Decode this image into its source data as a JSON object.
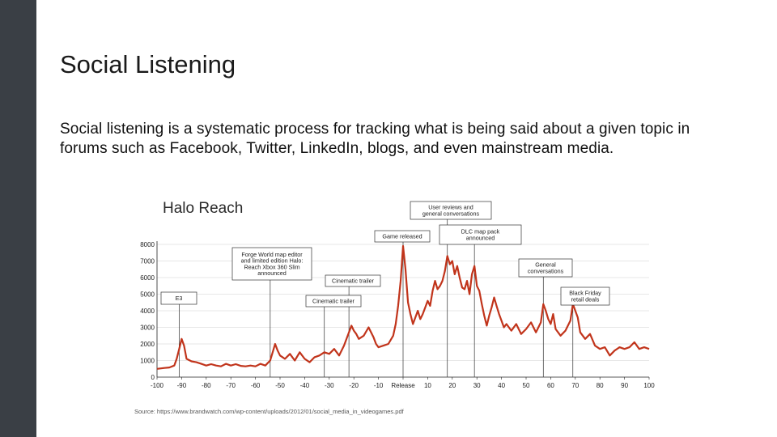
{
  "slide": {
    "title": "Social Listening",
    "body": "Social listening is a systematic process for tracking what is being said about a given topic in forums such as Facebook, Twitter, LinkedIn, blogs, and even mainstream media."
  },
  "chart_data": {
    "type": "line",
    "title": "Halo Reach",
    "xlabel": "",
    "ylabel": "",
    "xlim": [
      -100,
      100
    ],
    "ylim": [
      0,
      8000
    ],
    "grid": true,
    "x_ticks": [
      "-100",
      "-90",
      "-80",
      "-70",
      "-60",
      "-50",
      "-40",
      "-30",
      "-20",
      "-10",
      "Release",
      "10",
      "20",
      "30",
      "40",
      "50",
      "60",
      "70",
      "80",
      "90",
      "100"
    ],
    "y_ticks": [
      "0",
      "1000",
      "2000",
      "3000",
      "4000",
      "5000",
      "6000",
      "7000",
      "8000"
    ],
    "color": "#c1341b",
    "series": [
      {
        "values": [
          [
            -100,
            500
          ],
          [
            -97,
            550
          ],
          [
            -95,
            580
          ],
          [
            -93,
            700
          ],
          [
            -92,
            1100
          ],
          [
            -91,
            1700
          ],
          [
            -90,
            2300
          ],
          [
            -89,
            1900
          ],
          [
            -88,
            1100
          ],
          [
            -86,
            950
          ],
          [
            -84,
            900
          ],
          [
            -82,
            800
          ],
          [
            -80,
            700
          ],
          [
            -78,
            780
          ],
          [
            -76,
            700
          ],
          [
            -74,
            650
          ],
          [
            -72,
            800
          ],
          [
            -70,
            700
          ],
          [
            -68,
            780
          ],
          [
            -66,
            680
          ],
          [
            -64,
            650
          ],
          [
            -62,
            700
          ],
          [
            -60,
            650
          ],
          [
            -58,
            800
          ],
          [
            -56,
            700
          ],
          [
            -54,
            1000
          ],
          [
            -53,
            1500
          ],
          [
            -52,
            2000
          ],
          [
            -51,
            1600
          ],
          [
            -50,
            1300
          ],
          [
            -48,
            1100
          ],
          [
            -46,
            1400
          ],
          [
            -44,
            1000
          ],
          [
            -42,
            1500
          ],
          [
            -40,
            1100
          ],
          [
            -38,
            900
          ],
          [
            -36,
            1200
          ],
          [
            -34,
            1300
          ],
          [
            -32,
            1500
          ],
          [
            -30,
            1400
          ],
          [
            -28,
            1700
          ],
          [
            -26,
            1300
          ],
          [
            -24,
            1900
          ],
          [
            -22,
            2700
          ],
          [
            -21,
            3100
          ],
          [
            -20,
            2800
          ],
          [
            -19,
            2600
          ],
          [
            -18,
            2300
          ],
          [
            -16,
            2500
          ],
          [
            -14,
            3000
          ],
          [
            -12,
            2400
          ],
          [
            -11,
            2000
          ],
          [
            -10,
            1800
          ],
          [
            -8,
            1900
          ],
          [
            -6,
            2000
          ],
          [
            -4,
            2500
          ],
          [
            -3,
            3200
          ],
          [
            -2,
            4300
          ],
          [
            -1,
            5800
          ],
          [
            0,
            7900
          ],
          [
            1,
            6500
          ],
          [
            2,
            4500
          ],
          [
            3,
            3800
          ],
          [
            4,
            3200
          ],
          [
            5,
            3600
          ],
          [
            6,
            4000
          ],
          [
            7,
            3500
          ],
          [
            8,
            3800
          ],
          [
            9,
            4200
          ],
          [
            10,
            4600
          ],
          [
            11,
            4300
          ],
          [
            12,
            5200
          ],
          [
            13,
            5800
          ],
          [
            14,
            5300
          ],
          [
            15,
            5500
          ],
          [
            16,
            5800
          ],
          [
            17,
            6400
          ],
          [
            18,
            7300
          ],
          [
            19,
            6800
          ],
          [
            20,
            7000
          ],
          [
            21,
            6200
          ],
          [
            22,
            6700
          ],
          [
            23,
            6000
          ],
          [
            24,
            5400
          ],
          [
            25,
            5300
          ],
          [
            26,
            5800
          ],
          [
            27,
            5000
          ],
          [
            28,
            6200
          ],
          [
            29,
            6700
          ],
          [
            30,
            5500
          ],
          [
            31,
            5200
          ],
          [
            32,
            4400
          ],
          [
            33,
            3700
          ],
          [
            34,
            3100
          ],
          [
            35,
            3700
          ],
          [
            36,
            4200
          ],
          [
            37,
            4800
          ],
          [
            38,
            4300
          ],
          [
            39,
            3800
          ],
          [
            40,
            3400
          ],
          [
            41,
            3000
          ],
          [
            42,
            3200
          ],
          [
            44,
            2800
          ],
          [
            46,
            3200
          ],
          [
            48,
            2600
          ],
          [
            50,
            2900
          ],
          [
            52,
            3300
          ],
          [
            54,
            2700
          ],
          [
            56,
            3300
          ],
          [
            57,
            4400
          ],
          [
            58,
            4000
          ],
          [
            59,
            3500
          ],
          [
            60,
            3200
          ],
          [
            61,
            3800
          ],
          [
            62,
            2900
          ],
          [
            64,
            2500
          ],
          [
            66,
            2800
          ],
          [
            68,
            3400
          ],
          [
            69,
            4400
          ],
          [
            70,
            4000
          ],
          [
            71,
            3600
          ],
          [
            72,
            2700
          ],
          [
            74,
            2300
          ],
          [
            76,
            2600
          ],
          [
            78,
            1900
          ],
          [
            80,
            1700
          ],
          [
            82,
            1800
          ],
          [
            84,
            1300
          ],
          [
            86,
            1600
          ],
          [
            88,
            1800
          ],
          [
            90,
            1700
          ],
          [
            92,
            1800
          ],
          [
            94,
            2100
          ],
          [
            96,
            1700
          ],
          [
            98,
            1800
          ],
          [
            100,
            1700
          ]
        ]
      }
    ],
    "annotations": [
      {
        "x": -91,
        "y": 2300,
        "lines": [
          "E3"
        ]
      },
      {
        "x": -54,
        "y": 1500,
        "lines": [
          "Forge World map editor",
          "and limited edition Halo:",
          "Reach Xbox 360 Slim",
          "announced"
        ]
      },
      {
        "x": -22,
        "y": 3100,
        "lines": [
          "Cinematic trailer"
        ]
      },
      {
        "x": -32,
        "y": 1500,
        "lines": [
          "Cinematic trailer"
        ]
      },
      {
        "x": 0,
        "y": 7900,
        "lines": [
          "Game released"
        ]
      },
      {
        "x": 18,
        "y": 7300,
        "lines": [
          "User reviews and",
          "general conversations"
        ]
      },
      {
        "x": 29,
        "y": 6700,
        "lines": [
          "DLC map pack",
          "announced"
        ]
      },
      {
        "x": 57,
        "y": 4400,
        "lines": [
          "General",
          "conversations"
        ]
      },
      {
        "x": 69,
        "y": 4400,
        "lines": [
          "Black Friday",
          "retail deals"
        ]
      }
    ],
    "source": "Source: https://www.brandwatch.com/wp-content/uploads/2012/01/social_media_in_videogames.pdf"
  }
}
